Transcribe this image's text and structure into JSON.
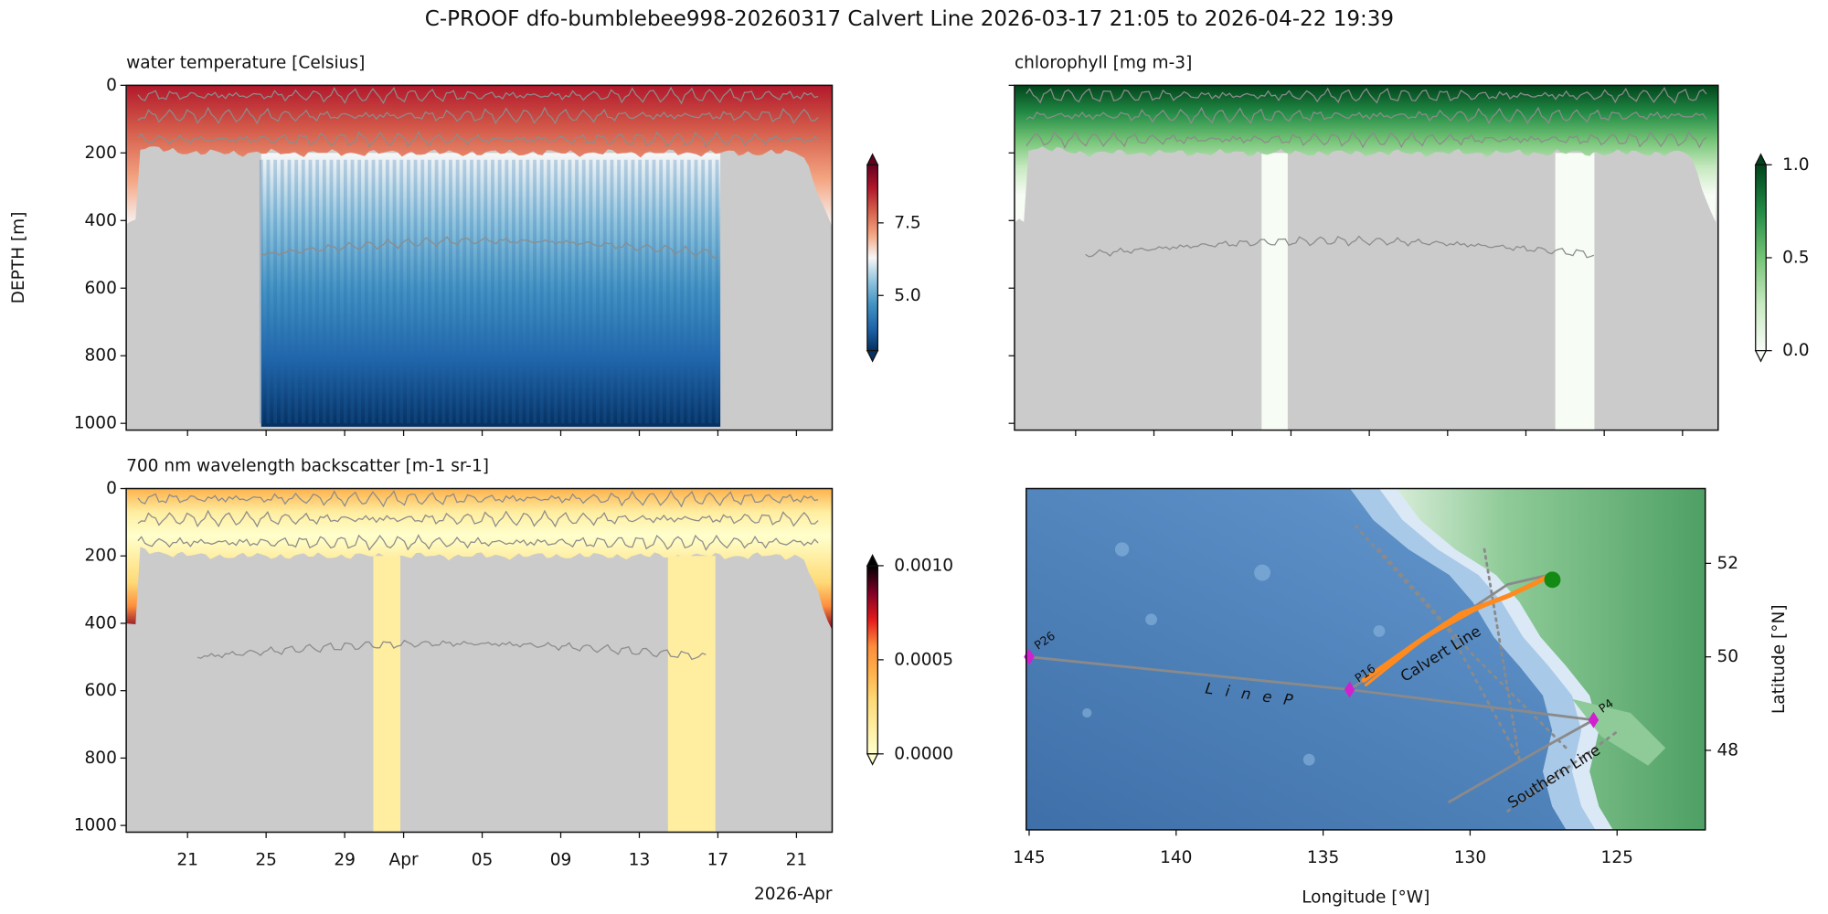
{
  "title": "C-PROOF dfo-bumblebee998-20260317   Calvert Line   2026-03-17 21:05 to 2026-04-22 19:39",
  "chart_data": [
    {
      "type": "heatmap",
      "title": "water temperature [Celsius]",
      "y_label": "DEPTH [m]",
      "xlim": [
        "2026-03-17T21:05",
        "2026-04-22T19:39"
      ],
      "ylim": [
        1020,
        0
      ],
      "yticks": [
        0,
        200,
        400,
        600,
        800,
        1000
      ],
      "clim": [
        3.1,
        9.5
      ],
      "cticks": [
        {
          "value": 5,
          "label": "5.0"
        },
        {
          "value": 7.5,
          "label": "7.5"
        }
      ],
      "colors": [
        "#053061",
        "#2166ac",
        "#4393c3",
        "#92c5de",
        "#f7f7f7",
        "#f4a582",
        "#d6604d",
        "#b2182b",
        "#67001f"
      ]
    },
    {
      "type": "heatmap",
      "title": "chlorophyll [mg m-3]",
      "xlim": [
        "2026-03-17T21:05",
        "2026-04-22T19:39"
      ],
      "ylim": [
        1020,
        0
      ],
      "clim": [
        0,
        1
      ],
      "cticks": [
        {
          "value": 0,
          "label": "0.0"
        },
        {
          "value": 0.5,
          "label": "0.5"
        },
        {
          "value": 1,
          "label": "1.0"
        }
      ],
      "colors": [
        "#f7fcf5",
        "#c7e9c0",
        "#74c476",
        "#238b45",
        "#00441b"
      ]
    },
    {
      "type": "heatmap",
      "title": "700 nm wavelength backscatter [m-1 sr-1]",
      "xlim": [
        "2026-03-17T21:05",
        "2026-04-22T19:39"
      ],
      "ylim": [
        1020,
        0
      ],
      "yticks": [
        0,
        200,
        400,
        600,
        800,
        1000
      ],
      "xticks": [
        {
          "value": "2026-03-21",
          "label": "21"
        },
        {
          "value": "2026-03-25",
          "label": "25"
        },
        {
          "value": "2026-03-29",
          "label": "29"
        },
        {
          "value": "2026-04-01",
          "label": "Apr"
        },
        {
          "value": "2026-04-05",
          "label": "05"
        },
        {
          "value": "2026-04-09",
          "label": "09"
        },
        {
          "value": "2026-04-13",
          "label": "13"
        },
        {
          "value": "2026-04-17",
          "label": "17"
        },
        {
          "value": "2026-04-21",
          "label": "21"
        }
      ],
      "x_offset_label": "2026-Apr",
      "clim": [
        0,
        0.001
      ],
      "cticks": [
        {
          "value": 0,
          "label": "0.0000"
        },
        {
          "value": 0.0005,
          "label": "0.0005"
        },
        {
          "value": 0.001,
          "label": "0.0010"
        }
      ],
      "colors": [
        "#ffffcc",
        "#ffeda0",
        "#fed976",
        "#feb24c",
        "#fd8d3c",
        "#e31a1c",
        "#800026",
        "#000000"
      ]
    },
    {
      "type": "map",
      "x_label": "Longitude [°W]",
      "y_label": "Latitude [°N]",
      "xlim": [
        145.1,
        122.0
      ],
      "ylim": [
        46.3,
        53.6
      ],
      "xticks": [
        145,
        140,
        135,
        130,
        125
      ],
      "yticks": [
        48,
        50,
        52
      ],
      "stations": [
        {
          "name": "P26",
          "lon": 145,
          "lat": 50
        },
        {
          "name": "P16",
          "lon": 134.1,
          "lat": 49.3
        },
        {
          "name": "P4",
          "lon": 125.8,
          "lat": 48.65
        }
      ],
      "station_color": "#d020d0",
      "labels": [
        "Calvert Line",
        "L i n e   P",
        "Southern Line"
      ],
      "position": {
        "lon": 127.2,
        "lat": 51.65
      },
      "position_color": "#138a13",
      "track_color": "#ff8a1e"
    }
  ]
}
